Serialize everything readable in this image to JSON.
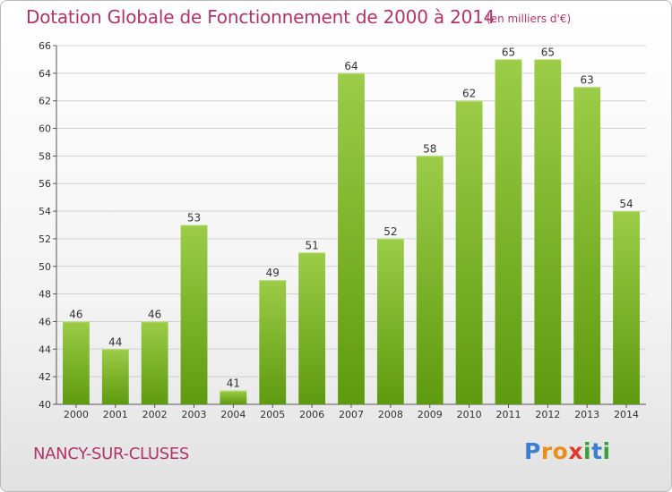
{
  "header": {
    "title": "Dotation Globale de Fonctionnement de 2000 à 2014",
    "unit_note": "(en milliers d'€)"
  },
  "footer": {
    "commune": "NANCY-SUR-CLUSES",
    "logo_text": "Proxiti",
    "logo_letters": [
      {
        "ch": "P",
        "color": "#3a7fd0"
      },
      {
        "ch": "r",
        "color": "#e8901a"
      },
      {
        "ch": "o",
        "color": "#e8901a"
      },
      {
        "ch": "x",
        "color": "#e03a2a"
      },
      {
        "ch": "i",
        "color": "#3aa03a"
      },
      {
        "ch": "t",
        "color": "#3a7fd0"
      },
      {
        "ch": "i",
        "color": "#3aa03a"
      }
    ]
  },
  "colors": {
    "text_accent": "#b0346a",
    "bar_top": "#9ccc48",
    "bar_bottom": "#5e9a10",
    "grid": "#d0d0d0"
  },
  "chart_data": {
    "type": "bar",
    "title": "Dotation Globale de Fonctionnement de 2000 à 2014",
    "subtitle": "(en milliers d'€)",
    "xlabel": "",
    "ylabel": "",
    "categories": [
      "2000",
      "2001",
      "2002",
      "2003",
      "2004",
      "2005",
      "2006",
      "2007",
      "2008",
      "2009",
      "2010",
      "2011",
      "2012",
      "2013",
      "2014"
    ],
    "values": [
      46,
      44,
      46,
      53,
      41,
      49,
      51,
      64,
      52,
      58,
      62,
      65,
      65,
      63,
      54
    ],
    "data_labels": [
      "46",
      "44",
      "46",
      "53",
      "41",
      "49",
      "51",
      "64",
      "52",
      "58",
      "62",
      "65",
      "65",
      "63",
      "54"
    ],
    "yticks": [
      40,
      42,
      44,
      46,
      48,
      50,
      52,
      54,
      56,
      58,
      60,
      62,
      64,
      66
    ],
    "ylim": [
      40,
      66
    ],
    "grid": true,
    "legend": "none"
  }
}
